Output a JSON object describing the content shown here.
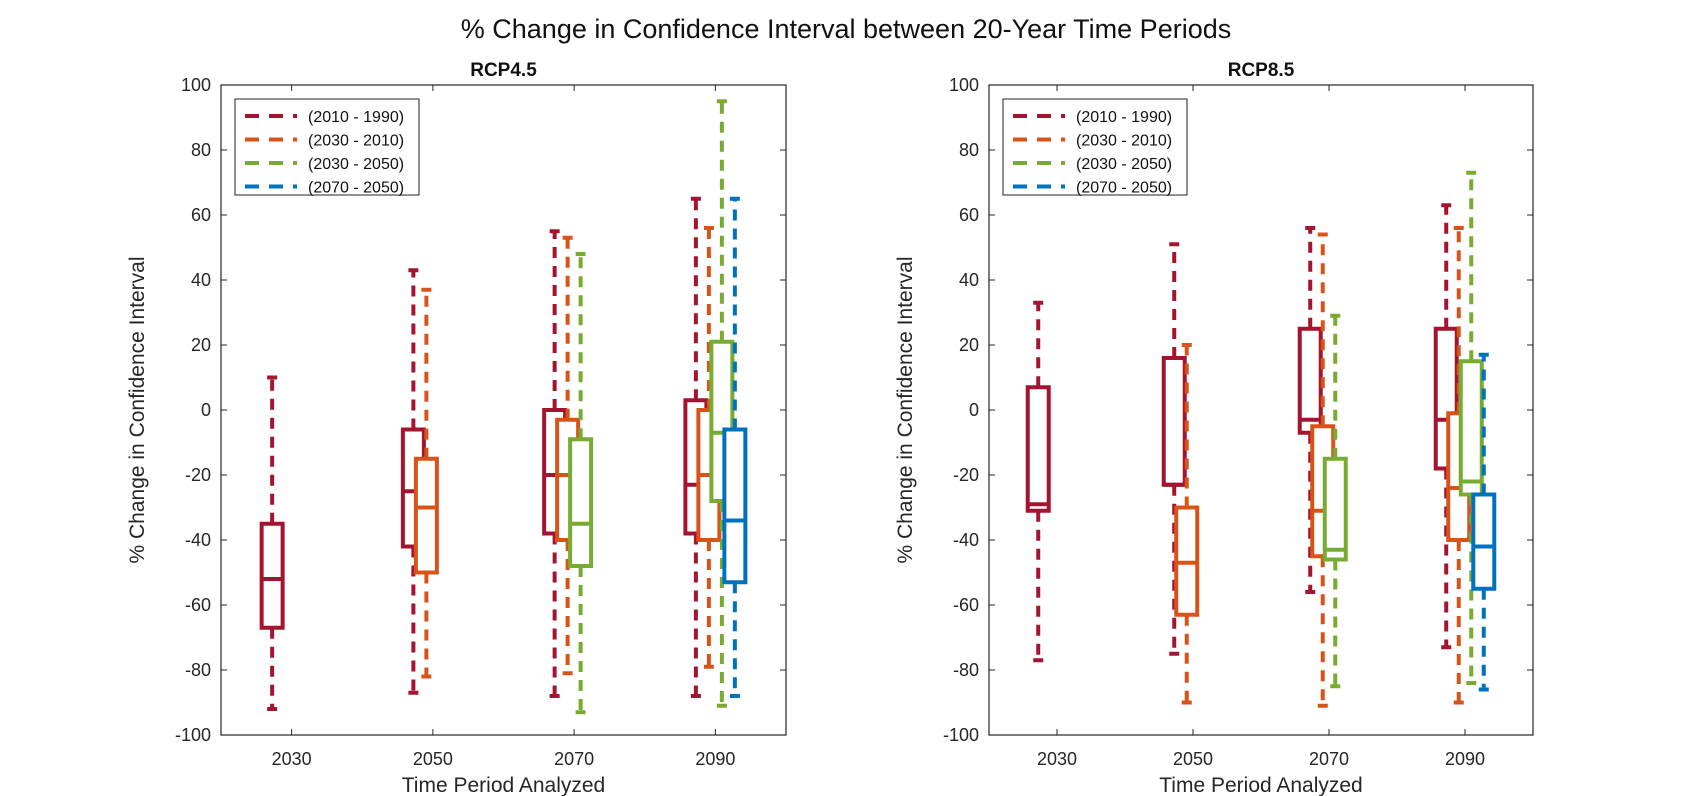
{
  "title": "% Change in Confidence Interval between 20-Year Time Periods",
  "colors": {
    "(2010 - 1990)": "#A2142F",
    "(2030 - 2010)": "#D95319",
    "(2030 - 2050)": "#77AC30",
    "(2070 - 2050)": "#0072BD"
  },
  "chart_data": [
    {
      "type": "box",
      "title": "RCP4.5",
      "xlabel": "Time Period Analyzed",
      "ylabel": "% Change in Confidence Interval",
      "ylim": [
        -100,
        100
      ],
      "yticks": [
        -100,
        -80,
        -60,
        -40,
        -20,
        0,
        20,
        40,
        60,
        80,
        100
      ],
      "categories": [
        "2030",
        "2050",
        "2070",
        "2090"
      ],
      "legend_position": "top-left",
      "series": [
        {
          "name": "(2010 - 1990)",
          "boxes": [
            {
              "category": "2030",
              "min": -92,
              "q1": -67,
              "median": -52,
              "q3": -35,
              "max": 10
            },
            {
              "category": "2050",
              "min": -87,
              "q1": -42,
              "median": -25,
              "q3": -6,
              "max": 43
            },
            {
              "category": "2070",
              "min": -88,
              "q1": -38,
              "median": -20,
              "q3": 0,
              "max": 55
            },
            {
              "category": "2090",
              "min": -88,
              "q1": -38,
              "median": -23,
              "q3": 3,
              "max": 65
            }
          ]
        },
        {
          "name": "(2030 - 2010)",
          "boxes": [
            {
              "category": "2050",
              "min": -82,
              "q1": -50,
              "median": -30,
              "q3": -15,
              "max": 37
            },
            {
              "category": "2070",
              "min": -81,
              "q1": -40,
              "median": -20,
              "q3": -3,
              "max": 53
            },
            {
              "category": "2090",
              "min": -79,
              "q1": -40,
              "median": -20,
              "q3": 0,
              "max": 56
            }
          ]
        },
        {
          "name": "(2030 - 2050)",
          "boxes": [
            {
              "category": "2070",
              "min": -93,
              "q1": -48,
              "median": -35,
              "q3": -9,
              "max": 48
            },
            {
              "category": "2090",
              "min": -91,
              "q1": -28,
              "median": -7,
              "q3": 21,
              "max": 95
            }
          ]
        },
        {
          "name": "(2070 - 2050)",
          "boxes": [
            {
              "category": "2090",
              "min": -88,
              "q1": -53,
              "median": -34,
              "q3": -6,
              "max": 65
            }
          ]
        }
      ]
    },
    {
      "type": "box",
      "title": "RCP8.5",
      "xlabel": "Time Period Analyzed",
      "ylabel": "% Change in Confidence Interval",
      "ylim": [
        -100,
        100
      ],
      "yticks": [
        -100,
        -80,
        -60,
        -40,
        -20,
        0,
        20,
        40,
        60,
        80,
        100
      ],
      "categories": [
        "2030",
        "2050",
        "2070",
        "2090"
      ],
      "legend_position": "top-left",
      "series": [
        {
          "name": "(2010 - 1990)",
          "boxes": [
            {
              "category": "2030",
              "min": -77,
              "q1": -31,
              "median": -29,
              "q3": 7,
              "max": 33
            },
            {
              "category": "2050",
              "min": -75,
              "q1": -23,
              "median": -23,
              "q3": 16,
              "max": 51
            },
            {
              "category": "2070",
              "min": -56,
              "q1": -7,
              "median": -3,
              "q3": 25,
              "max": 56
            },
            {
              "category": "2090",
              "min": -73,
              "q1": -18,
              "median": -3,
              "q3": 25,
              "max": 63
            }
          ]
        },
        {
          "name": "(2030 - 2010)",
          "boxes": [
            {
              "category": "2050",
              "min": -90,
              "q1": -63,
              "median": -47,
              "q3": -30,
              "max": 20
            },
            {
              "category": "2070",
              "min": -91,
              "q1": -45,
              "median": -31,
              "q3": -5,
              "max": 54
            },
            {
              "category": "2090",
              "min": -90,
              "q1": -40,
              "median": -24,
              "q3": -1,
              "max": 56
            }
          ]
        },
        {
          "name": "(2030 - 2050)",
          "boxes": [
            {
              "category": "2070",
              "min": -85,
              "q1": -46,
              "median": -43,
              "q3": -15,
              "max": 29
            },
            {
              "category": "2090",
              "min": -84,
              "q1": -26,
              "median": -22,
              "q3": 15,
              "max": 73
            }
          ]
        },
        {
          "name": "(2070 - 2050)",
          "boxes": [
            {
              "category": "2090",
              "min": -86,
              "q1": -55,
              "median": -42,
              "q3": -26,
              "max": 17
            }
          ]
        }
      ]
    }
  ]
}
